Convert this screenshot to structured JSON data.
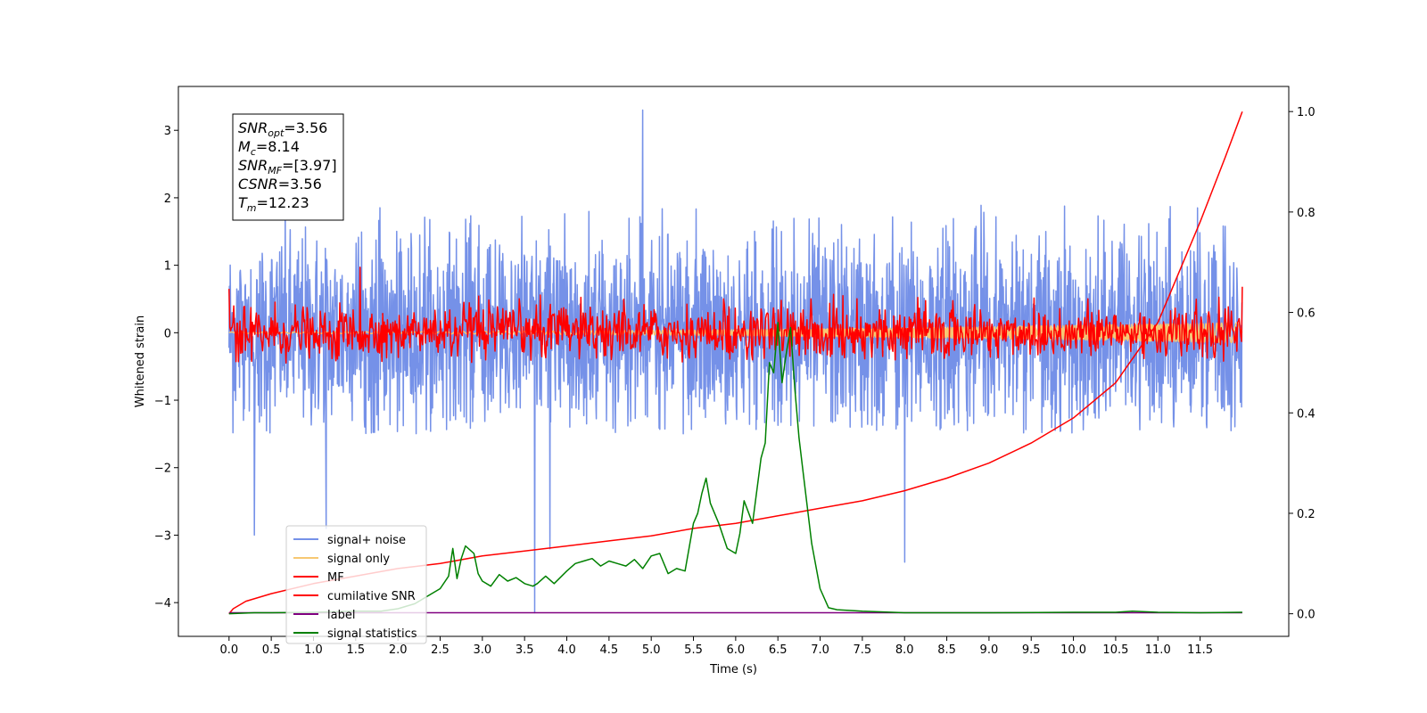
{
  "chart_data": {
    "type": "line",
    "xlabel": "Time (s)",
    "ylabel": "Whitened strain",
    "xlim": [
      -0.6,
      12.55
    ],
    "ylim": [
      -4.5,
      3.65
    ],
    "y2lim": [
      -0.045,
      1.05
    ],
    "x_ticks": [
      0.0,
      0.5,
      1.0,
      1.5,
      2.0,
      2.5,
      3.0,
      3.5,
      4.0,
      4.5,
      5.0,
      5.5,
      6.0,
      6.5,
      7.0,
      7.5,
      8.0,
      8.5,
      9.0,
      9.5,
      10.0,
      10.5,
      11.0,
      11.5
    ],
    "x_tick_labels": [
      "0.0",
      "0.5",
      "1.0",
      "1.5",
      "2.0",
      "2.5",
      "3.0",
      "3.5",
      "4.0",
      "4.5",
      "5.0",
      "5.5",
      "6.0",
      "6.5",
      "7.0",
      "7.5",
      "8.0",
      "8.5",
      "9.0",
      "9.5",
      "10.0",
      "10.5",
      "11.0",
      "11.5"
    ],
    "y_ticks": [
      -4,
      -3,
      -2,
      -1,
      0,
      1,
      2,
      3
    ],
    "y_tick_labels": [
      "−4",
      "−3",
      "−2",
      "−1",
      "0",
      "1",
      "2",
      "3"
    ],
    "y2_ticks": [
      0.0,
      0.2,
      0.4,
      0.6,
      0.8,
      1.0
    ],
    "y2_tick_labels": [
      "0.0",
      "0.2",
      "0.4",
      "0.6",
      "0.8",
      "1.0"
    ],
    "legend_position": "lower-left",
    "info_box": {
      "lines": [
        {
          "base": "SNR",
          "sub": "opt",
          "value": "=3.56"
        },
        {
          "base": "M",
          "sub": "c",
          "value": "=8.14"
        },
        {
          "base": "SNR",
          "sub": "MF",
          "value": "=[3.97]"
        },
        {
          "base": "CSNR",
          "sub": "",
          "value": "=3.56"
        },
        {
          "base": "T",
          "sub": "m",
          "value": "=12.23"
        }
      ]
    },
    "series": [
      {
        "name": "signal+ noise",
        "color": "#7591e8",
        "axis": "left",
        "kind": "noise",
        "x_range": [
          0.0,
          12.0
        ],
        "mean": 0.0,
        "typical_range": [
          -1.5,
          1.9
        ],
        "extremes": [
          {
            "x": 4.9,
            "y": 3.3
          },
          {
            "x": 3.62,
            "y": -4.15
          },
          {
            "x": 3.8,
            "y": -3.2
          },
          {
            "x": 8.0,
            "y": -3.4
          },
          {
            "x": 0.3,
            "y": -3.0
          },
          {
            "x": 1.15,
            "y": -2.9
          }
        ]
      },
      {
        "name": "signal only",
        "color": "#f7c873",
        "axis": "left",
        "kind": "chirp",
        "x_range": [
          0.0,
          12.0
        ],
        "amplitude_start": 0.01,
        "amplitude_end": 0.15
      },
      {
        "name": "MF",
        "color": "#ff0000",
        "axis": "left",
        "kind": "noise",
        "x_range": [
          0.0,
          12.0
        ],
        "mean": 0.0,
        "typical_range": [
          -0.45,
          0.6
        ],
        "extremes": [
          {
            "x": 1.55,
            "y": 0.97
          },
          {
            "x": 0.0,
            "y": 0.65
          },
          {
            "x": 12.0,
            "y": 0.68
          }
        ]
      },
      {
        "name": "cumilative SNR",
        "color": "#ff0000",
        "axis": "right",
        "kind": "line",
        "x": [
          0.0,
          0.05,
          0.2,
          0.5,
          1.0,
          1.5,
          2.0,
          2.5,
          3.0,
          3.5,
          4.0,
          4.5,
          5.0,
          5.5,
          6.0,
          6.5,
          7.0,
          7.5,
          8.0,
          8.5,
          9.0,
          9.5,
          10.0,
          10.5,
          11.0,
          11.5,
          11.8,
          12.0
        ],
        "y": [
          0.0,
          0.01,
          0.025,
          0.04,
          0.06,
          0.075,
          0.09,
          0.1,
          0.115,
          0.125,
          0.135,
          0.145,
          0.155,
          0.17,
          0.18,
          0.195,
          0.21,
          0.225,
          0.245,
          0.27,
          0.3,
          0.34,
          0.39,
          0.46,
          0.58,
          0.78,
          0.91,
          1.0
        ]
      },
      {
        "name": "label",
        "color": "#800080",
        "axis": "left",
        "kind": "line",
        "x": [
          0.0,
          12.0
        ],
        "y": [
          -4.15,
          -4.15
        ]
      },
      {
        "name": "signal statistics",
        "color": "#008000",
        "axis": "right",
        "kind": "line",
        "x": [
          0.0,
          0.3,
          0.5,
          1.0,
          1.5,
          1.8,
          2.0,
          2.2,
          2.4,
          2.5,
          2.6,
          2.65,
          2.7,
          2.75,
          2.8,
          2.9,
          2.95,
          3.0,
          3.1,
          3.2,
          3.3,
          3.4,
          3.5,
          3.6,
          3.65,
          3.75,
          3.85,
          4.0,
          4.1,
          4.2,
          4.3,
          4.4,
          4.5,
          4.6,
          4.7,
          4.8,
          4.9,
          5.0,
          5.1,
          5.2,
          5.3,
          5.4,
          5.5,
          5.55,
          5.6,
          5.65,
          5.7,
          5.8,
          5.9,
          6.0,
          6.05,
          6.1,
          6.2,
          6.3,
          6.35,
          6.4,
          6.45,
          6.5,
          6.55,
          6.6,
          6.65,
          6.7,
          6.75,
          6.8,
          6.9,
          7.0,
          7.1,
          7.2,
          7.5,
          8.0,
          9.0,
          10.0,
          10.5,
          10.7,
          11.0,
          11.5,
          12.0
        ],
        "y": [
          0.0,
          0.002,
          0.002,
          0.003,
          0.005,
          0.005,
          0.01,
          0.02,
          0.04,
          0.05,
          0.075,
          0.13,
          0.07,
          0.11,
          0.135,
          0.12,
          0.08,
          0.065,
          0.055,
          0.078,
          0.065,
          0.072,
          0.06,
          0.055,
          0.06,
          0.075,
          0.06,
          0.085,
          0.1,
          0.105,
          0.11,
          0.095,
          0.105,
          0.1,
          0.095,
          0.108,
          0.09,
          0.115,
          0.12,
          0.08,
          0.09,
          0.085,
          0.18,
          0.2,
          0.24,
          0.27,
          0.22,
          0.18,
          0.13,
          0.12,
          0.16,
          0.225,
          0.18,
          0.31,
          0.34,
          0.5,
          0.48,
          0.58,
          0.46,
          0.52,
          0.57,
          0.45,
          0.35,
          0.28,
          0.14,
          0.05,
          0.012,
          0.008,
          0.005,
          0.002,
          0.002,
          0.003,
          0.003,
          0.005,
          0.003,
          0.002,
          0.003
        ]
      }
    ]
  }
}
